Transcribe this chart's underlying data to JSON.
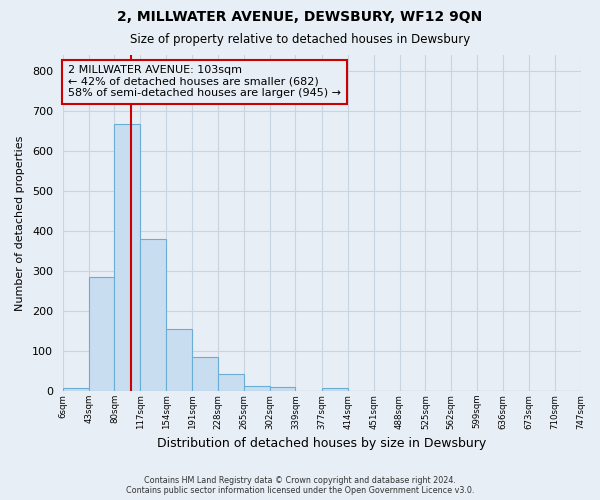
{
  "title": "2, MILLWATER AVENUE, DEWSBURY, WF12 9QN",
  "subtitle": "Size of property relative to detached houses in Dewsbury",
  "xlabel": "Distribution of detached houses by size in Dewsbury",
  "ylabel": "Number of detached properties",
  "bar_edges": [
    6,
    43,
    80,
    117,
    154,
    191,
    228,
    265,
    302,
    339,
    377,
    414,
    451,
    488,
    525,
    562,
    599,
    636,
    673,
    710,
    747
  ],
  "bar_heights": [
    7,
    285,
    667,
    380,
    155,
    86,
    42,
    13,
    10,
    0,
    7,
    0,
    0,
    0,
    0,
    0,
    0,
    0,
    0,
    0
  ],
  "bar_color": "#c9ddf0",
  "bar_edgecolor": "#6aaed6",
  "vline_x": 103,
  "vline_color": "#cc0000",
  "annotation_title": "2 MILLWATER AVENUE: 103sqm",
  "annotation_line1": "← 42% of detached houses are smaller (682)",
  "annotation_line2": "58% of semi-detached houses are larger (945) →",
  "annotation_box_edgecolor": "#cc0000",
  "ylim": [
    0,
    840
  ],
  "yticks": [
    0,
    100,
    200,
    300,
    400,
    500,
    600,
    700,
    800
  ],
  "xtick_labels": [
    "6sqm",
    "43sqm",
    "80sqm",
    "117sqm",
    "154sqm",
    "191sqm",
    "228sqm",
    "265sqm",
    "302sqm",
    "339sqm",
    "377sqm",
    "414sqm",
    "451sqm",
    "488sqm",
    "525sqm",
    "562sqm",
    "599sqm",
    "636sqm",
    "673sqm",
    "710sqm",
    "747sqm"
  ],
  "footer1": "Contains HM Land Registry data © Crown copyright and database right 2024.",
  "footer2": "Contains public sector information licensed under the Open Government Licence v3.0.",
  "bg_color": "#e8eef5",
  "plot_bg_color": "#e8eef5",
  "grid_color": "#c8d4e0"
}
